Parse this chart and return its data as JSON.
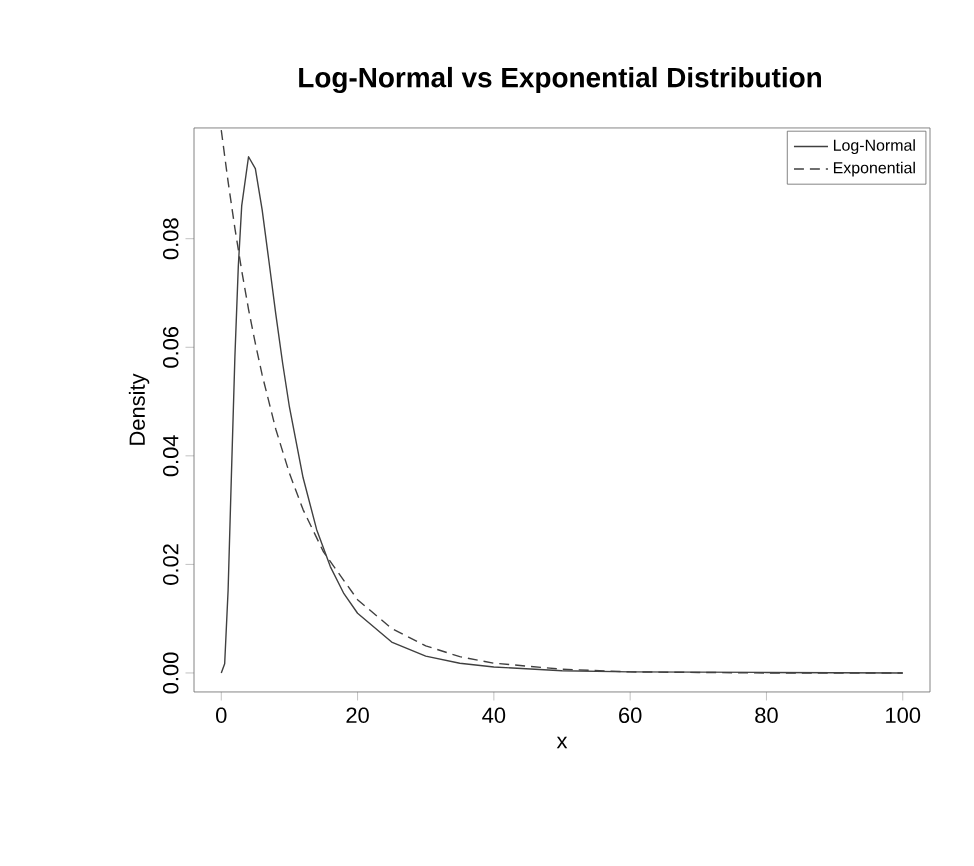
{
  "chart_data": {
    "type": "line",
    "title": "Log-Normal vs Exponential Distribution",
    "xlabel": "x",
    "ylabel": "Density",
    "xlim": [
      -4,
      104
    ],
    "ylim": [
      -0.0035,
      0.1004
    ],
    "xticks": [
      0,
      20,
      40,
      60,
      80,
      100
    ],
    "yticks": [
      {
        "value": 0,
        "label": "0.00"
      },
      {
        "value": 0.02,
        "label": "0.02"
      },
      {
        "value": 0.04,
        "label": "0.04"
      },
      {
        "value": 0.06,
        "label": "0.06"
      },
      {
        "value": 0.08,
        "label": "0.08"
      }
    ],
    "legend": "top right",
    "marker": "none",
    "series": [
      {
        "name": "Log-Normal",
        "color": "#404040",
        "line_style": "solid",
        "x": [
          0,
          0.5,
          1,
          1.5,
          2,
          2.5,
          3,
          4,
          5,
          6,
          7,
          8,
          9,
          10,
          12,
          14,
          16,
          18,
          20,
          25,
          30,
          35,
          40,
          50,
          60,
          80,
          100
        ],
        "values": [
          0,
          0.0017,
          0.0152,
          0.037,
          0.0583,
          0.0749,
          0.0861,
          0.0951,
          0.0929,
          0.0853,
          0.0758,
          0.0661,
          0.0571,
          0.049,
          0.036,
          0.0264,
          0.0196,
          0.0146,
          0.011,
          0.0057,
          0.0031,
          0.0018,
          0.0011,
          0.0004,
          0.0002,
          0.0001,
          0
        ]
      },
      {
        "name": "Exponential",
        "color": "#404040",
        "line_style": "dashed",
        "x": [
          0,
          1,
          2,
          3,
          4,
          5,
          6,
          8,
          10,
          12,
          15,
          20,
          25,
          30,
          35,
          40,
          50,
          60,
          70,
          80,
          100
        ],
        "values": [
          0.1,
          0.0905,
          0.0819,
          0.0741,
          0.067,
          0.0607,
          0.0549,
          0.0449,
          0.0368,
          0.0301,
          0.0223,
          0.0135,
          0.0082,
          0.005,
          0.003,
          0.0018,
          0.0007,
          0.0002,
          0.0001,
          0,
          0
        ]
      }
    ]
  }
}
